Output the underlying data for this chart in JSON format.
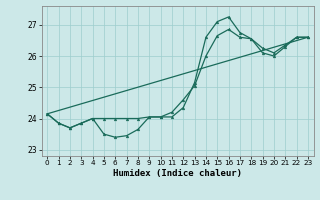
{
  "xlabel": "Humidex (Indice chaleur)",
  "xlim": [
    -0.5,
    23.5
  ],
  "ylim": [
    22.8,
    27.6
  ],
  "yticks": [
    23,
    24,
    25,
    26,
    27
  ],
  "xticks": [
    0,
    1,
    2,
    3,
    4,
    5,
    6,
    7,
    8,
    9,
    10,
    11,
    12,
    13,
    14,
    15,
    16,
    17,
    18,
    19,
    20,
    21,
    22,
    23
  ],
  "bg_color": "#cce8e8",
  "line_color": "#1a6b5a",
  "grid_color": "#9ecece",
  "series1_x": [
    0,
    1,
    2,
    3,
    4,
    5,
    6,
    7,
    8,
    9,
    10,
    11,
    12,
    13,
    14,
    15,
    16,
    17,
    18,
    19,
    20,
    21,
    22,
    23
  ],
  "series1_y": [
    24.15,
    23.85,
    23.7,
    23.85,
    24.0,
    23.5,
    23.4,
    23.45,
    23.65,
    24.05,
    24.05,
    24.05,
    24.35,
    25.15,
    26.6,
    27.1,
    27.25,
    26.75,
    26.55,
    26.1,
    26.0,
    26.3,
    26.6,
    26.6
  ],
  "series2_x": [
    0,
    1,
    2,
    3,
    4,
    5,
    6,
    7,
    8,
    9,
    10,
    11,
    12,
    13,
    14,
    15,
    16,
    17,
    18,
    19,
    20,
    21,
    22,
    23
  ],
  "series2_y": [
    24.15,
    23.85,
    23.7,
    23.85,
    24.0,
    24.0,
    24.0,
    24.0,
    24.0,
    24.05,
    24.05,
    24.2,
    24.6,
    25.05,
    26.0,
    26.65,
    26.85,
    26.6,
    26.55,
    26.25,
    26.1,
    26.35,
    26.6,
    26.6
  ],
  "series3_x": [
    0,
    23
  ],
  "series3_y": [
    24.15,
    26.6
  ]
}
